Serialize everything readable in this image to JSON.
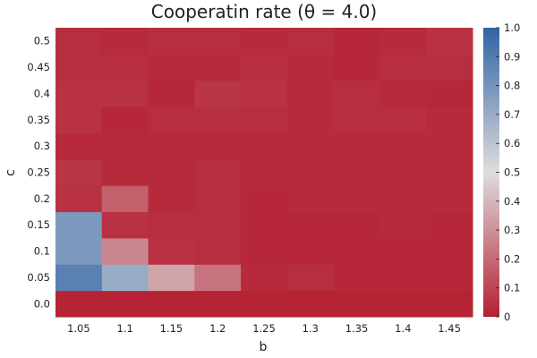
{
  "chart_data": {
    "type": "heatmap",
    "title": "Cooperatin rate (θ = 4.0)",
    "xlabel": "b",
    "ylabel": "c",
    "x": [
      1.05,
      1.1,
      1.15,
      1.2,
      1.25,
      1.3,
      1.35,
      1.4,
      1.45
    ],
    "x_tick_labels": [
      "1.05",
      "1.1",
      "1.15",
      "1.2",
      "1.25",
      "1.3",
      "1.35",
      "1.4",
      "1.45"
    ],
    "y": [
      0.0,
      0.05,
      0.1,
      0.15,
      0.2,
      0.25,
      0.3,
      0.35,
      0.4,
      0.45,
      0.5
    ],
    "y_tick_labels": [
      "0.0",
      "0.05",
      "0.1",
      "0.15",
      "0.2",
      "0.25",
      "0.3",
      "0.35",
      "0.4",
      "0.45",
      "0.5"
    ],
    "z": [
      [
        0.01,
        0.01,
        0.01,
        0.01,
        0.01,
        0.01,
        0.01,
        0.01,
        0.01
      ],
      [
        0.88,
        0.7,
        0.35,
        0.22,
        0.03,
        0.04,
        0.02,
        0.02,
        0.02
      ],
      [
        0.78,
        0.27,
        0.05,
        0.04,
        0.02,
        0.02,
        0.02,
        0.02,
        0.02
      ],
      [
        0.78,
        0.05,
        0.04,
        0.04,
        0.02,
        0.02,
        0.02,
        0.03,
        0.02
      ],
      [
        0.05,
        0.17,
        0.03,
        0.04,
        0.02,
        0.03,
        0.03,
        0.03,
        0.03
      ],
      [
        0.06,
        0.03,
        0.03,
        0.04,
        0.03,
        0.03,
        0.03,
        0.03,
        0.03
      ],
      [
        0.03,
        0.03,
        0.03,
        0.03,
        0.03,
        0.03,
        0.03,
        0.03,
        0.03
      ],
      [
        0.05,
        0.02,
        0.04,
        0.04,
        0.04,
        0.03,
        0.04,
        0.04,
        0.03
      ],
      [
        0.05,
        0.05,
        0.02,
        0.06,
        0.05,
        0.03,
        0.04,
        0.03,
        0.02
      ],
      [
        0.04,
        0.04,
        0.03,
        0.03,
        0.04,
        0.03,
        0.02,
        0.04,
        0.04
      ],
      [
        0.04,
        0.03,
        0.04,
        0.04,
        0.03,
        0.04,
        0.02,
        0.03,
        0.05
      ]
    ],
    "zlim": [
      0,
      1
    ],
    "colorbar": {
      "ticks": [
        0,
        0.1,
        0.2,
        0.3,
        0.4,
        0.5,
        0.6,
        0.7,
        0.8,
        0.9,
        1.0
      ],
      "tick_labels": [
        "0",
        "0.1",
        "0.2",
        "0.3",
        "0.4",
        "0.5",
        "0.6",
        "0.7",
        "0.8",
        "0.9",
        "1.0"
      ],
      "colormap": [
        "#b2182b",
        "#d6604d",
        "#f4a582",
        "#fddbc7",
        "#f7f7f7",
        "#d1e5f0",
        "#92c5de",
        "#4393c3",
        "#2166ac"
      ],
      "colormap_name": "balance-red-white-blue"
    },
    "grid": false
  },
  "colors": {
    "low": "#b41f32",
    "mid": "#dddddd",
    "high": "#3262a4",
    "axis": "#222222"
  }
}
